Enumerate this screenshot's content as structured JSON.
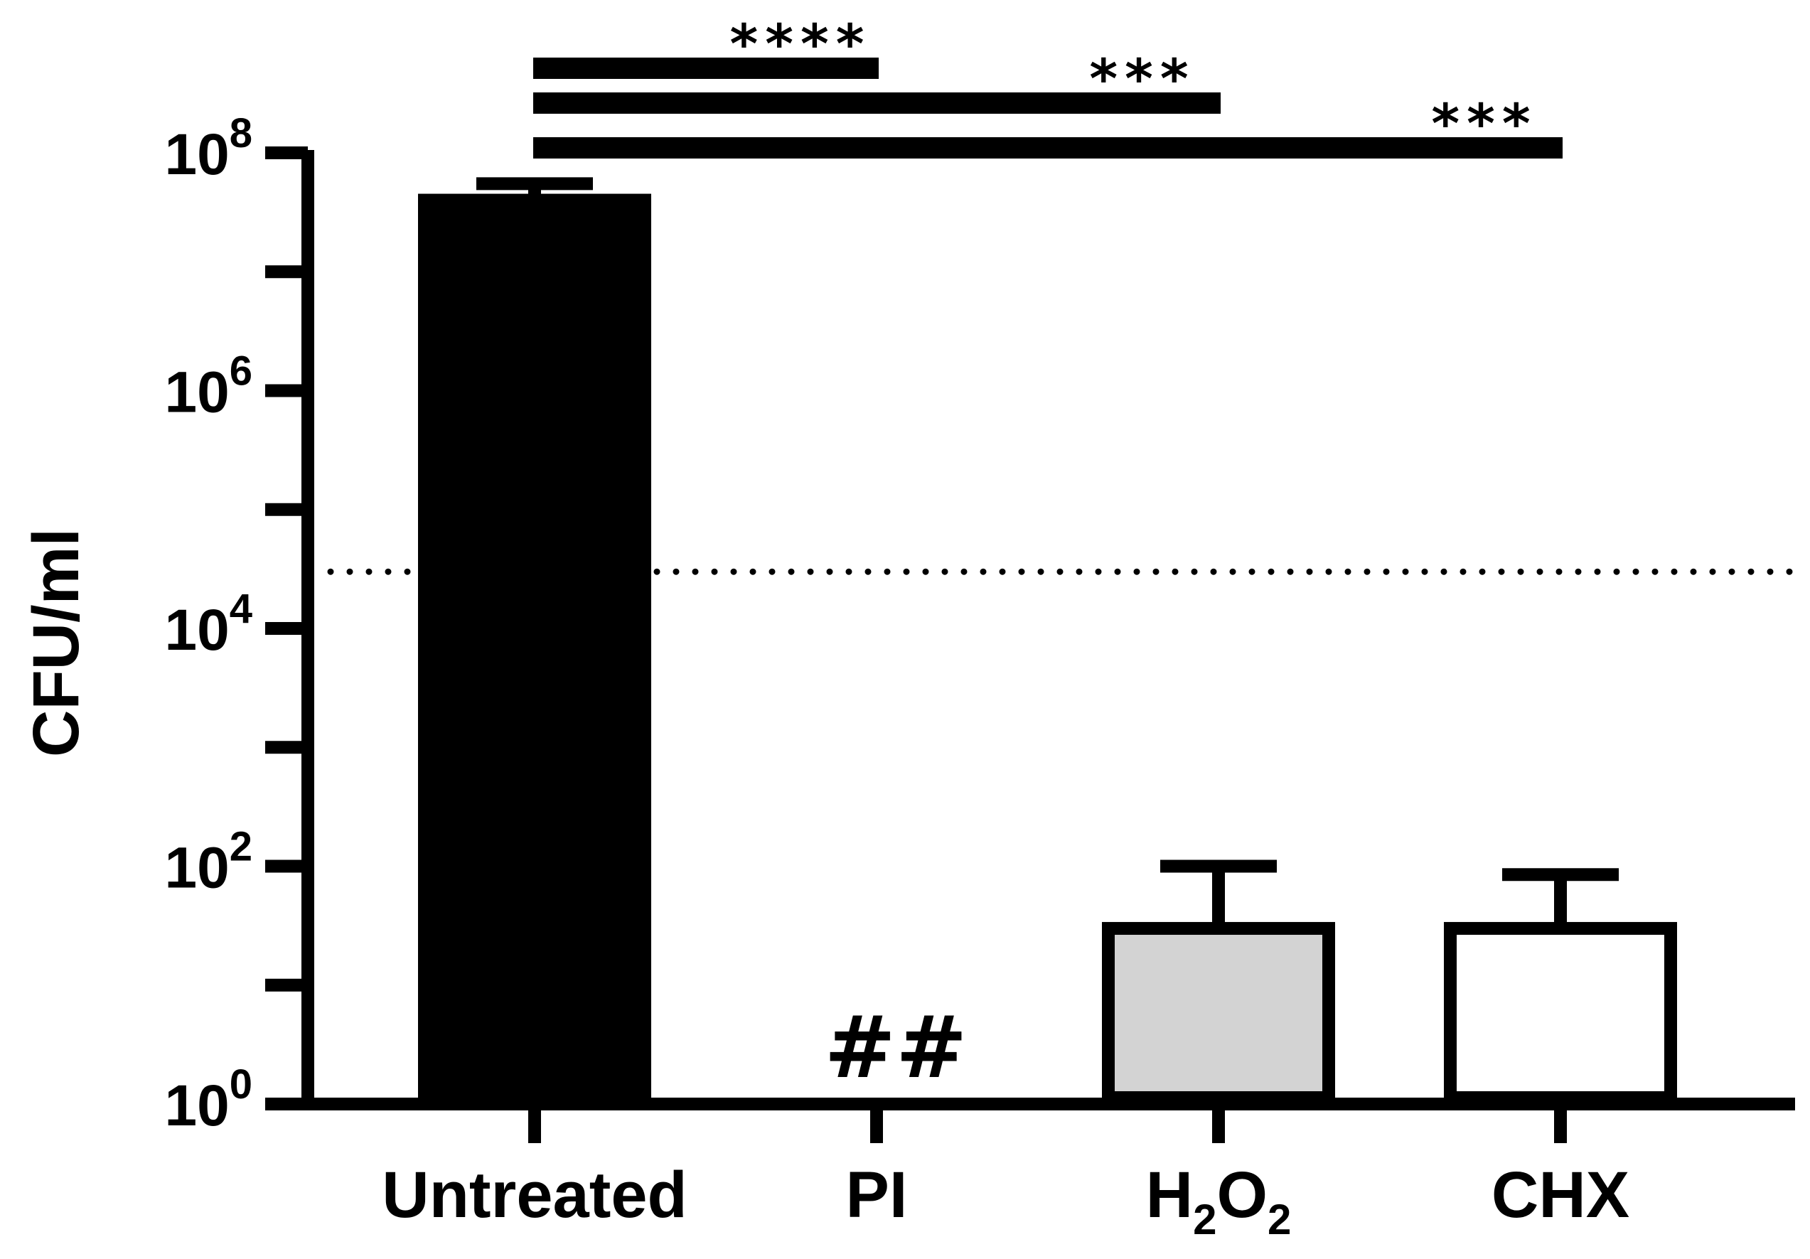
{
  "chart_data": {
    "type": "bar",
    "ylabel": "CFU/ml",
    "yscale": "log",
    "ylim": [
      1,
      100000000
    ],
    "yticks": [
      {
        "base": "10",
        "exp": "0",
        "value": 1
      },
      {
        "base": "10",
        "exp": "2",
        "value": 100
      },
      {
        "base": "10",
        "exp": "4",
        "value": 10000
      },
      {
        "base": "10",
        "exp": "6",
        "value": 1000000
      },
      {
        "base": "10",
        "exp": "8",
        "value": 100000000
      }
    ],
    "categories": [
      {
        "label": "Untreated",
        "sub": "",
        "label_tail": "",
        "sub_tail": ""
      },
      {
        "label": "PI",
        "sub": "",
        "label_tail": "",
        "sub_tail": ""
      },
      {
        "label": "H",
        "sub": "2",
        "label_tail": "O",
        "sub_tail": "2"
      },
      {
        "label": "CHX",
        "sub": "",
        "label_tail": "",
        "sub_tail": ""
      }
    ],
    "values": [
      40000000,
      1,
      30,
      30
    ],
    "error_upper": [
      55000000,
      null,
      100,
      85
    ],
    "bar_fills": [
      "#000000",
      "#ffffff",
      "#d3d3d3",
      "#ffffff"
    ],
    "detection_limit": 30000,
    "grid": false,
    "annotations": [
      {
        "text": "##",
        "category": 1
      },
      {
        "text": "****",
        "from": 0,
        "to": 1,
        "rank": 0
      },
      {
        "text": "***",
        "from": 0,
        "to": 2,
        "rank": 1
      },
      {
        "text": "***",
        "from": 0,
        "to": 3,
        "rank": 2
      }
    ]
  }
}
